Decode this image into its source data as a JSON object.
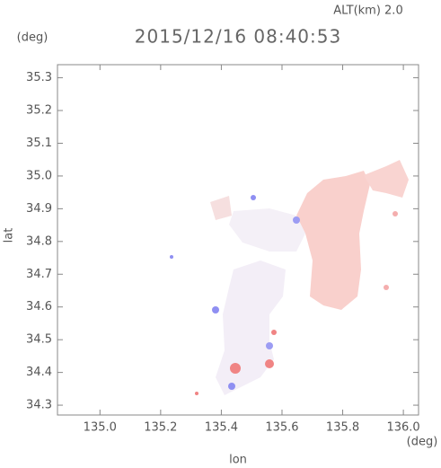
{
  "chart_data": {
    "type": "map",
    "title": "2015/12/16 08:40:53",
    "subtitle": "ALT(km)  2.0",
    "x_label": "lon",
    "x_unit": "(deg)",
    "y_label": "lat",
    "y_unit": "(deg)",
    "xlim": [
      134.86,
      136.05
    ],
    "xticks": [
      {
        "value": 135.0,
        "label": "135.0"
      },
      135.2,
      135.4,
      135.6,
      135.8,
      {
        "value": 136.0,
        "label": "136.0"
      }
    ],
    "ylim": [
      34.27,
      35.34
    ],
    "yticks": [
      34.3,
      34.4,
      34.5,
      34.6,
      34.7,
      34.8,
      34.9,
      {
        "value": 35.0,
        "label": "35.0"
      },
      35.1,
      35.2,
      35.3
    ]
  }
}
